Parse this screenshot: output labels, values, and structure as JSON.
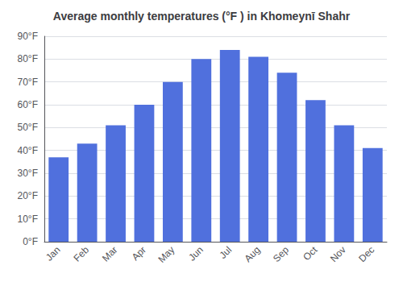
{
  "chart_data": {
    "type": "bar",
    "title": "Average monthly temperatures (°F ) in Khomeynī Shahr",
    "categories": [
      "Jan",
      "Feb",
      "Mar",
      "Apr",
      "May",
      "Jun",
      "Jul",
      "Aug",
      "Sep",
      "Oct",
      "Nov",
      "Dec"
    ],
    "values": [
      37,
      43,
      51,
      60,
      70,
      80,
      84,
      81,
      74,
      62,
      51,
      41
    ],
    "ylim": [
      0,
      90
    ],
    "yticks": [
      {
        "value": 0,
        "label": "0°F"
      },
      {
        "value": 10,
        "label": "10°F"
      },
      {
        "value": 20,
        "label": "20°F"
      },
      {
        "value": 30,
        "label": "30°F"
      },
      {
        "value": 40,
        "label": "40°F"
      },
      {
        "value": 50,
        "label": "50°F"
      },
      {
        "value": 60,
        "label": "60°F"
      },
      {
        "value": 70,
        "label": "70°F"
      },
      {
        "value": 80,
        "label": "80°F"
      },
      {
        "value": 90,
        "label": "90°F"
      }
    ],
    "grid": true
  }
}
